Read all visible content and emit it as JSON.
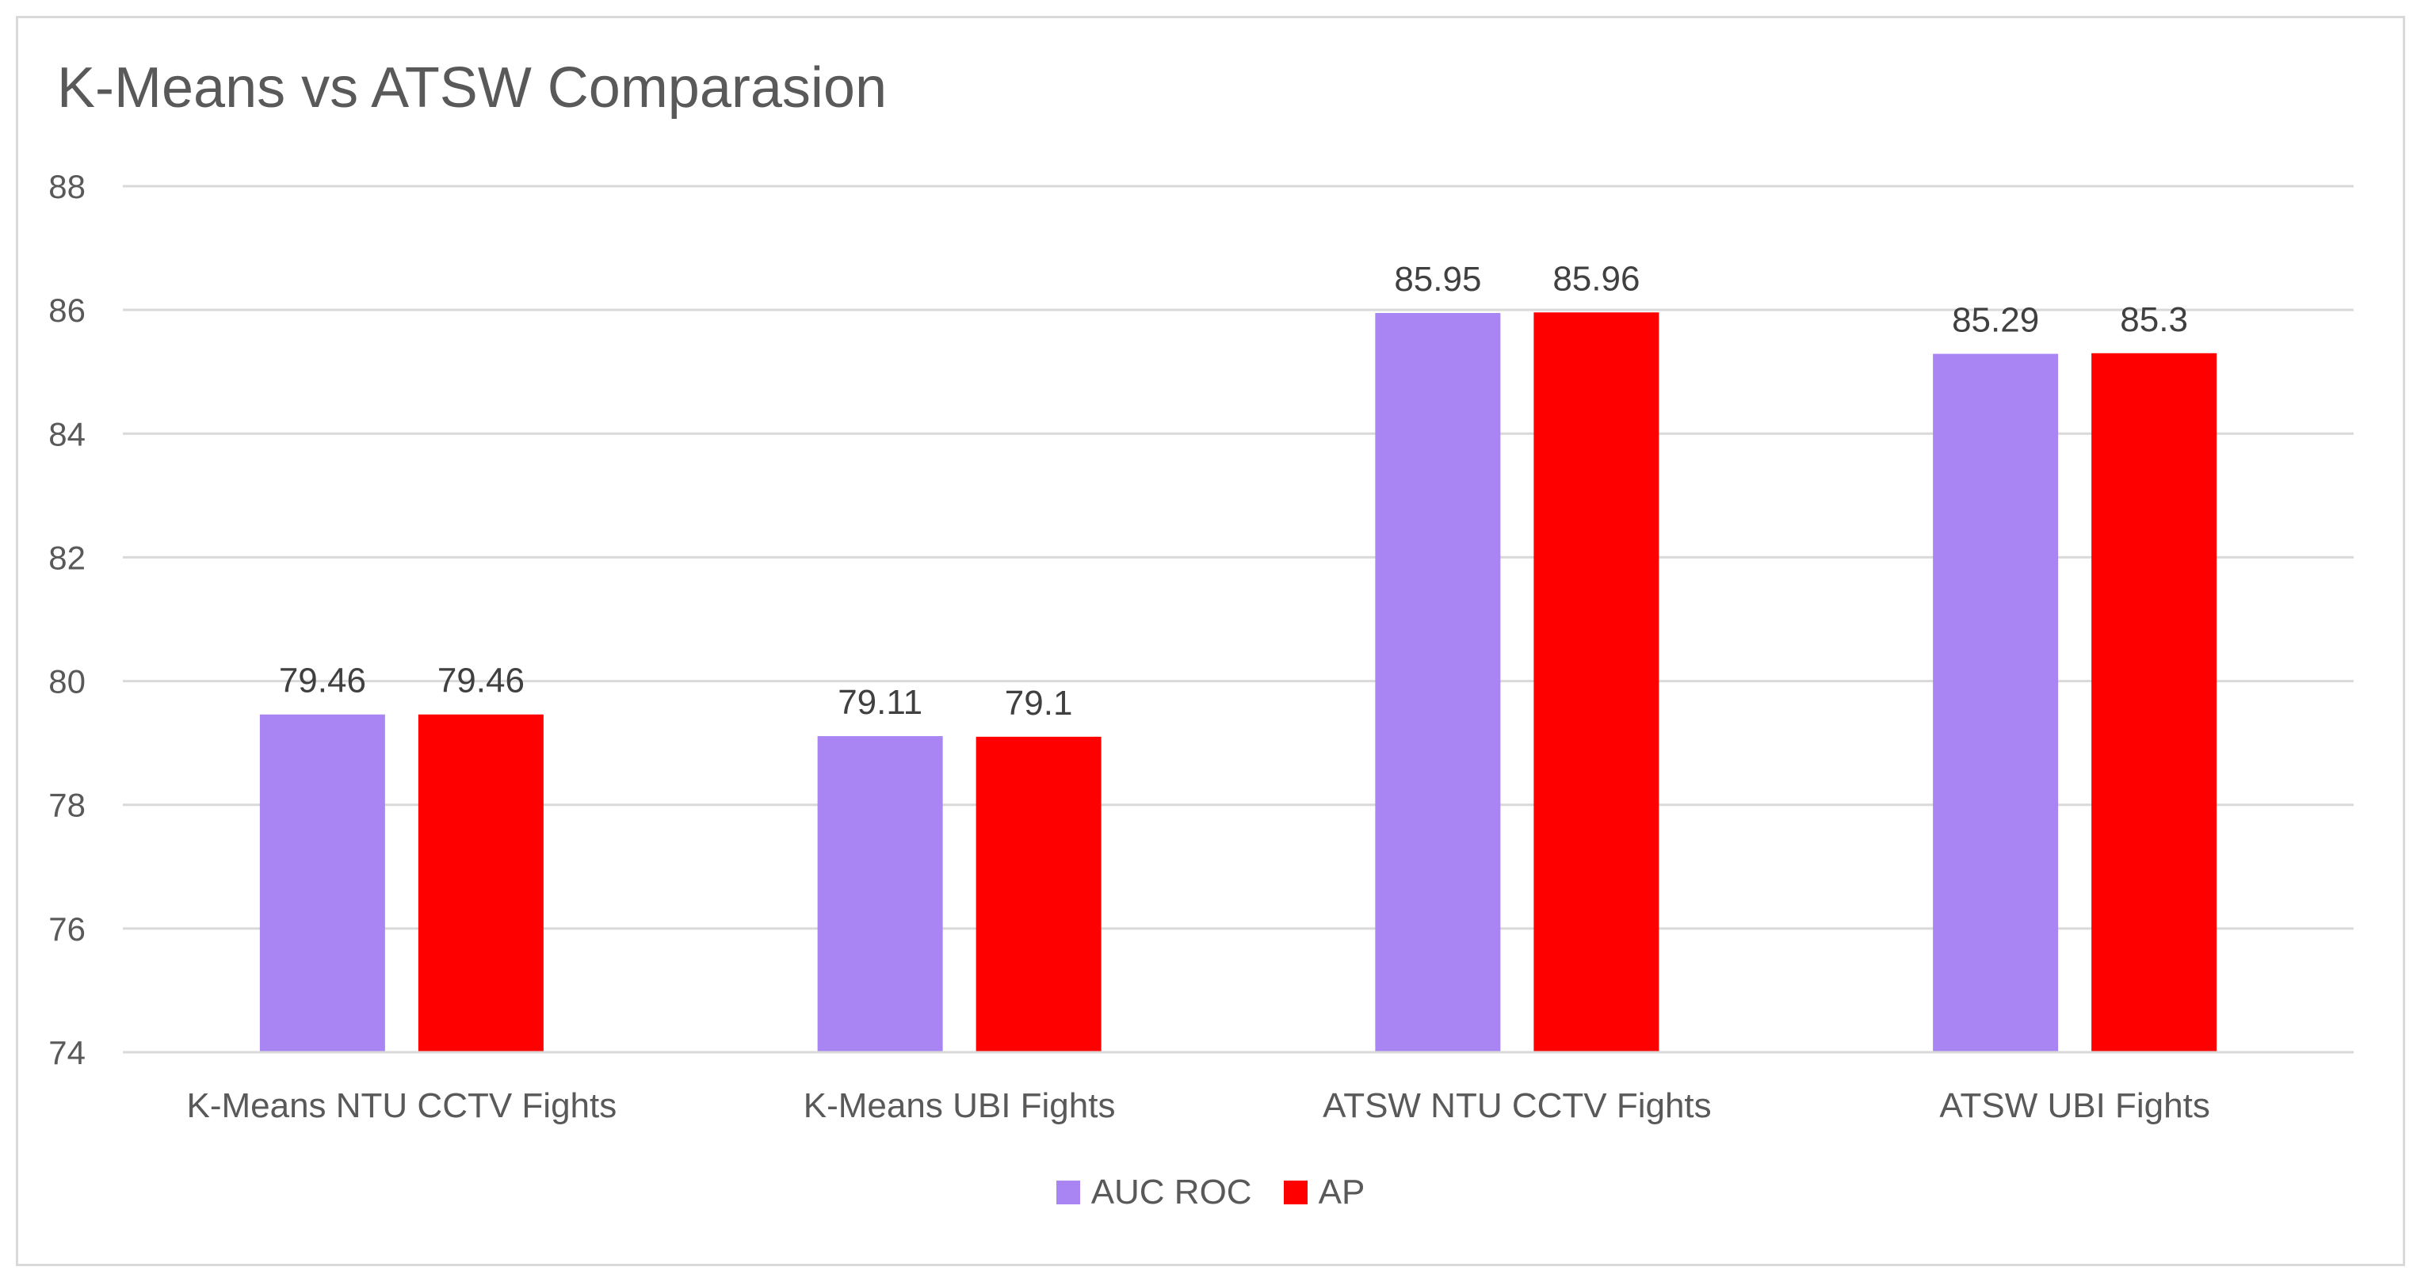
{
  "chart_data": {
    "type": "bar",
    "title": "K-Means vs ATSW Comparasion",
    "categories": [
      "K-Means NTU CCTV Fights",
      "K-Means UBI Fights",
      "ATSW NTU CCTV Fights",
      "ATSW UBI Fights"
    ],
    "series": [
      {
        "name": "AUC ROC",
        "color": "#a985f4",
        "values": [
          79.46,
          79.11,
          85.95,
          85.29
        ]
      },
      {
        "name": "AP",
        "color": "#ff0000",
        "values": [
          79.46,
          79.1,
          85.96,
          85.3
        ]
      }
    ],
    "xlabel": "",
    "ylabel": "",
    "ylim": [
      74,
      88
    ],
    "yticks": [
      74,
      76,
      78,
      80,
      82,
      84,
      86,
      88
    ],
    "grid": true,
    "legend_position": "bottom"
  }
}
